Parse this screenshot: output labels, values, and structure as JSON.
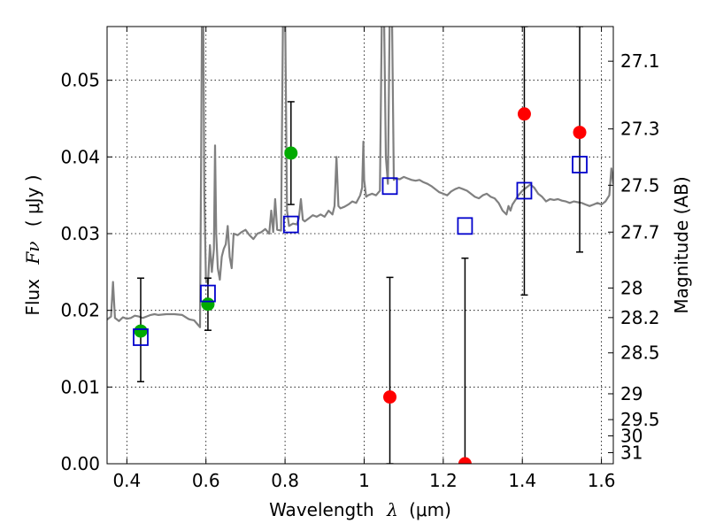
{
  "chart_data": {
    "type": "scatter",
    "xlabel": "Wavelength",
    "xlabel_symbol": "λ",
    "xlabel_unit": "(μm)",
    "ylabel": "Flux",
    "ylabel_symbol": "Fν",
    "ylabel_unit": "( μJy )",
    "ylabel_right": "Magnitude (AB)",
    "xlim": [
      0.35,
      1.63
    ],
    "ylim": [
      0.0,
      0.057
    ],
    "xticks": [
      0.4,
      0.6,
      0.8,
      1.0,
      1.2,
      1.4,
      1.6
    ],
    "xtick_labels": [
      "0.4",
      "0.6",
      "0.8",
      "1",
      "1.2",
      "1.4",
      "1.6"
    ],
    "yticks": [
      0.0,
      0.01,
      0.02,
      0.03,
      0.04,
      0.05
    ],
    "ytick_labels": [
      "0.00",
      "0.01",
      "0.02",
      "0.03",
      "0.04",
      "0.05"
    ],
    "mag_ticks": [
      {
        "mag": 27.1,
        "label": "27.1"
      },
      {
        "mag": 27.3,
        "label": "27.3"
      },
      {
        "mag": 27.5,
        "label": "27.5"
      },
      {
        "mag": 27.7,
        "label": "27.7"
      },
      {
        "mag": 28.0,
        "label": "28"
      },
      {
        "mag": 28.2,
        "label": "28.2"
      },
      {
        "mag": 28.5,
        "label": "28.5"
      },
      {
        "mag": 29.0,
        "label": "29"
      },
      {
        "mag": 29.5,
        "label": "29.5"
      },
      {
        "mag": 30.0,
        "label": "30"
      },
      {
        "mag": 31.0,
        "label": "31"
      }
    ],
    "grid": true,
    "series": [
      {
        "name": "model spectrum",
        "kind": "line",
        "color": "#808080",
        "points": [
          [
            0.35,
            0.0188
          ],
          [
            0.36,
            0.0192
          ],
          [
            0.365,
            0.0237
          ],
          [
            0.37,
            0.019
          ],
          [
            0.38,
            0.0186
          ],
          [
            0.39,
            0.0191
          ],
          [
            0.4,
            0.0189
          ],
          [
            0.41,
            0.019
          ],
          [
            0.42,
            0.0193
          ],
          [
            0.43,
            0.0192
          ],
          [
            0.44,
            0.019
          ],
          [
            0.45,
            0.0192
          ],
          [
            0.46,
            0.0194
          ],
          [
            0.47,
            0.0195
          ],
          [
            0.48,
            0.0194
          ],
          [
            0.5,
            0.0195
          ],
          [
            0.52,
            0.0195
          ],
          [
            0.54,
            0.0194
          ],
          [
            0.555,
            0.0189
          ],
          [
            0.56,
            0.0188
          ],
          [
            0.57,
            0.0187
          ],
          [
            0.58,
            0.0181
          ],
          [
            0.585,
            0.0178
          ],
          [
            0.588,
            0.042
          ],
          [
            0.59,
            0.06
          ],
          [
            0.593,
            0.06
          ],
          [
            0.596,
            0.035
          ],
          [
            0.6,
            0.024
          ],
          [
            0.605,
            0.0235
          ],
          [
            0.61,
            0.0285
          ],
          [
            0.615,
            0.025
          ],
          [
            0.62,
            0.028
          ],
          [
            0.623,
            0.0415
          ],
          [
            0.626,
            0.03
          ],
          [
            0.63,
            0.0255
          ],
          [
            0.635,
            0.024
          ],
          [
            0.64,
            0.027
          ],
          [
            0.645,
            0.028
          ],
          [
            0.65,
            0.0286
          ],
          [
            0.655,
            0.031
          ],
          [
            0.66,
            0.027
          ],
          [
            0.665,
            0.0255
          ],
          [
            0.67,
            0.03
          ],
          [
            0.68,
            0.0298
          ],
          [
            0.69,
            0.0302
          ],
          [
            0.7,
            0.0305
          ],
          [
            0.71,
            0.0298
          ],
          [
            0.72,
            0.0293
          ],
          [
            0.73,
            0.03
          ],
          [
            0.74,
            0.0302
          ],
          [
            0.75,
            0.0306
          ],
          [
            0.76,
            0.03
          ],
          [
            0.765,
            0.033
          ],
          [
            0.77,
            0.0302
          ],
          [
            0.775,
            0.0345
          ],
          [
            0.78,
            0.0305
          ],
          [
            0.79,
            0.0304
          ],
          [
            0.795,
            0.06
          ],
          [
            0.8,
            0.06
          ],
          [
            0.805,
            0.033
          ],
          [
            0.81,
            0.031
          ],
          [
            0.82,
            0.0313
          ],
          [
            0.83,
            0.0312
          ],
          [
            0.835,
            0.032
          ],
          [
            0.84,
            0.0345
          ],
          [
            0.845,
            0.0318
          ],
          [
            0.85,
            0.0316
          ],
          [
            0.86,
            0.032
          ],
          [
            0.87,
            0.0324
          ],
          [
            0.88,
            0.0322
          ],
          [
            0.89,
            0.0325
          ],
          [
            0.9,
            0.0322
          ],
          [
            0.91,
            0.033
          ],
          [
            0.92,
            0.0325
          ],
          [
            0.925,
            0.0336
          ],
          [
            0.93,
            0.04
          ],
          [
            0.935,
            0.0336
          ],
          [
            0.94,
            0.0333
          ],
          [
            0.95,
            0.0335
          ],
          [
            0.96,
            0.0338
          ],
          [
            0.97,
            0.0342
          ],
          [
            0.98,
            0.034
          ],
          [
            0.99,
            0.035
          ],
          [
            0.995,
            0.036
          ],
          [
            0.998,
            0.042
          ],
          [
            1.0,
            0.037
          ],
          [
            1.005,
            0.0348
          ],
          [
            1.01,
            0.035
          ],
          [
            1.02,
            0.0352
          ],
          [
            1.03,
            0.035
          ],
          [
            1.04,
            0.0356
          ],
          [
            1.045,
            0.06
          ],
          [
            1.05,
            0.06
          ],
          [
            1.055,
            0.04
          ],
          [
            1.06,
            0.0365
          ],
          [
            1.065,
            0.06
          ],
          [
            1.07,
            0.06
          ],
          [
            1.075,
            0.037
          ],
          [
            1.08,
            0.0372
          ],
          [
            1.09,
            0.0371
          ],
          [
            1.1,
            0.0374
          ],
          [
            1.11,
            0.0372
          ],
          [
            1.12,
            0.037
          ],
          [
            1.13,
            0.0369
          ],
          [
            1.14,
            0.037
          ],
          [
            1.15,
            0.0367
          ],
          [
            1.16,
            0.0365
          ],
          [
            1.17,
            0.0362
          ],
          [
            1.18,
            0.0358
          ],
          [
            1.19,
            0.0354
          ],
          [
            1.2,
            0.0352
          ],
          [
            1.21,
            0.035
          ],
          [
            1.22,
            0.0355
          ],
          [
            1.23,
            0.0358
          ],
          [
            1.24,
            0.036
          ],
          [
            1.25,
            0.0358
          ],
          [
            1.26,
            0.0356
          ],
          [
            1.27,
            0.0352
          ],
          [
            1.28,
            0.0348
          ],
          [
            1.29,
            0.0346
          ],
          [
            1.3,
            0.035
          ],
          [
            1.31,
            0.0352
          ],
          [
            1.32,
            0.0348
          ],
          [
            1.33,
            0.0346
          ],
          [
            1.34,
            0.034
          ],
          [
            1.35,
            0.033
          ],
          [
            1.36,
            0.0325
          ],
          [
            1.365,
            0.0336
          ],
          [
            1.37,
            0.033
          ],
          [
            1.375,
            0.0338
          ],
          [
            1.38,
            0.0342
          ],
          [
            1.39,
            0.035
          ],
          [
            1.4,
            0.0356
          ],
          [
            1.41,
            0.036
          ],
          [
            1.42,
            0.0364
          ],
          [
            1.43,
            0.036
          ],
          [
            1.44,
            0.0352
          ],
          [
            1.45,
            0.0348
          ],
          [
            1.46,
            0.0342
          ],
          [
            1.47,
            0.0345
          ],
          [
            1.48,
            0.0344
          ],
          [
            1.49,
            0.0345
          ],
          [
            1.5,
            0.0343
          ],
          [
            1.51,
            0.0342
          ],
          [
            1.52,
            0.034
          ],
          [
            1.53,
            0.0342
          ],
          [
            1.54,
            0.0341
          ],
          [
            1.55,
            0.034
          ],
          [
            1.56,
            0.0338
          ],
          [
            1.57,
            0.0336
          ],
          [
            1.58,
            0.0338
          ],
          [
            1.59,
            0.034
          ],
          [
            1.6,
            0.0338
          ],
          [
            1.61,
            0.0342
          ],
          [
            1.62,
            0.035
          ],
          [
            1.625,
            0.0385
          ],
          [
            1.63,
            0.0365
          ]
        ]
      },
      {
        "name": "green detections",
        "kind": "points",
        "color": "#00aa00",
        "points": [
          {
            "x": 0.435,
            "y": 0.0173,
            "err_lo": 0.0107,
            "err_hi": 0.0242
          },
          {
            "x": 0.605,
            "y": 0.0208,
            "err_lo": 0.0174,
            "err_hi": 0.0242
          },
          {
            "x": 0.815,
            "y": 0.0405,
            "err_lo": 0.0338,
            "err_hi": 0.0472
          }
        ]
      },
      {
        "name": "red detections",
        "kind": "points",
        "color": "#ff0000",
        "points": [
          {
            "x": 1.065,
            "y": 0.0087,
            "err_lo": 0.0,
            "err_hi": 0.0243
          },
          {
            "x": 1.255,
            "y": 0.0,
            "err_lo": 0.0,
            "err_hi": 0.0268
          },
          {
            "x": 1.405,
            "y": 0.0456,
            "err_lo": 0.022,
            "err_hi": 0.057
          },
          {
            "x": 1.545,
            "y": 0.0432,
            "err_lo": 0.0276,
            "err_hi": 0.057
          }
        ]
      },
      {
        "name": "model photometry",
        "kind": "open-squares",
        "color": "#0000cc",
        "points": [
          {
            "x": 0.435,
            "y": 0.0165
          },
          {
            "x": 0.605,
            "y": 0.0222
          },
          {
            "x": 0.815,
            "y": 0.0312
          },
          {
            "x": 1.065,
            "y": 0.0362
          },
          {
            "x": 1.255,
            "y": 0.031
          },
          {
            "x": 1.405,
            "y": 0.0356
          },
          {
            "x": 1.545,
            "y": 0.039
          }
        ]
      }
    ]
  }
}
